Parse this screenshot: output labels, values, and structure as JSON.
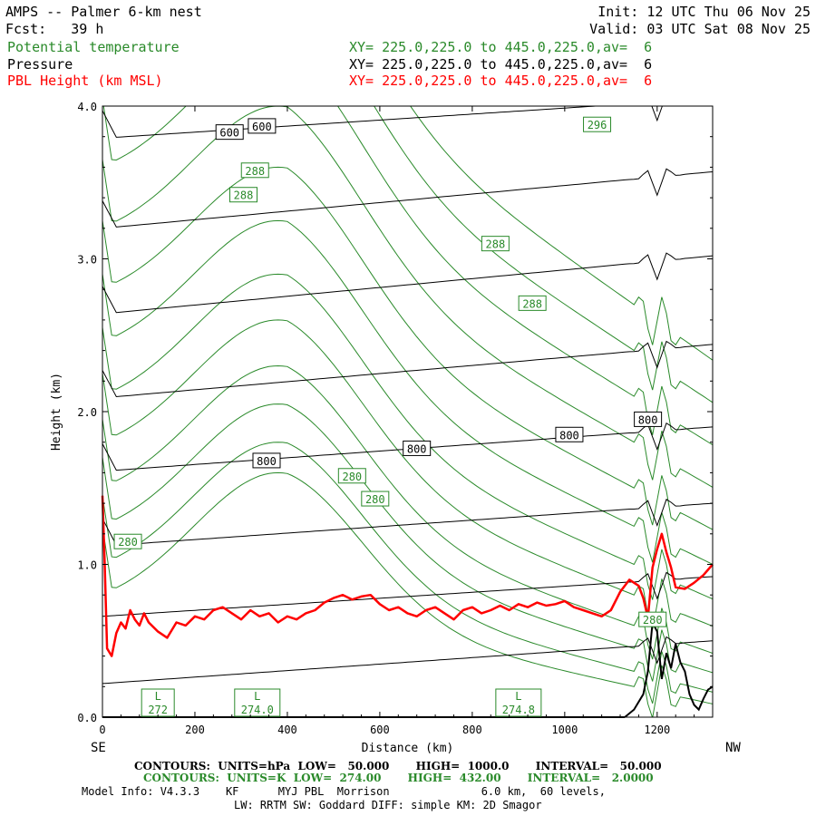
{
  "header": {
    "title": "AMPS -- Palmer 6-km nest",
    "fcst_label": "Fcst:",
    "fcst_value": "39 h",
    "init": "Init: 12 UTC Thu 06 Nov 25",
    "valid": "Valid: 03 UTC Sat 08 Nov 25",
    "fields": [
      {
        "name": "Potential temperature",
        "xy": "XY= 225.0,225.0 to 445.0,225.0,av=  6",
        "color": "#2a8a2a"
      },
      {
        "name": "Pressure",
        "xy": "XY= 225.0,225.0 to 445.0,225.0,av=  6",
        "color": "#000000"
      },
      {
        "name": "PBL Height (km MSL)",
        "xy": "XY= 225.0,225.0 to 445.0,225.0,av=  6",
        "color": "#ff0000"
      }
    ]
  },
  "chart_data": {
    "type": "line",
    "xlabel": "Distance (km)",
    "ylabel": "Height (km)",
    "xlim": [
      0,
      1320
    ],
    "ylim": [
      0,
      4
    ],
    "x_ticks": [
      "0",
      "200",
      "400",
      "600",
      "800",
      "1000",
      "1200"
    ],
    "y_ticks": [
      "0.0",
      "1.0",
      "2.0",
      "3.0",
      "4.0"
    ],
    "left_end_label": "SE",
    "right_end_label": "NW",
    "contour_labels": [
      {
        "text": "600",
        "x": 275,
        "y": 3.83,
        "series": "pressure"
      },
      {
        "text": "600",
        "x": 345,
        "y": 3.87,
        "series": "pressure"
      },
      {
        "text": "800",
        "x": 355,
        "y": 1.68,
        "series": "pressure"
      },
      {
        "text": "800",
        "x": 680,
        "y": 1.76,
        "series": "pressure"
      },
      {
        "text": "800",
        "x": 1010,
        "y": 1.85,
        "series": "pressure"
      },
      {
        "text": "800",
        "x": 1180,
        "y": 1.95,
        "series": "pressure"
      },
      {
        "text": "296",
        "x": 1070,
        "y": 3.88,
        "series": "theta"
      },
      {
        "text": "288",
        "x": 330,
        "y": 3.58,
        "series": "theta"
      },
      {
        "text": "288",
        "x": 305,
        "y": 3.42,
        "series": "theta"
      },
      {
        "text": "288",
        "x": 850,
        "y": 3.1,
        "series": "theta"
      },
      {
        "text": "288",
        "x": 930,
        "y": 2.71,
        "series": "theta"
      },
      {
        "text": "280",
        "x": 540,
        "y": 1.58,
        "series": "theta"
      },
      {
        "text": "280",
        "x": 590,
        "y": 1.43,
        "series": "theta"
      },
      {
        "text": "280",
        "x": 55,
        "y": 1.15,
        "series": "theta"
      },
      {
        "text": "280",
        "x": 1190,
        "y": 0.64,
        "series": "theta"
      }
    ],
    "low_labels": [
      {
        "text": "L",
        "value": "272",
        "x": 120
      },
      {
        "text": "L",
        "value": "274.0",
        "x": 335
      },
      {
        "text": "L",
        "value": "274.8",
        "x": 900
      }
    ],
    "series": [
      {
        "name": "Pressure",
        "color": "#000000",
        "kind": "pressure_contours",
        "levels_y0": [
          0.22,
          0.66,
          1.12,
          1.61,
          2.09,
          2.64,
          3.2,
          3.79
        ],
        "levels_y1": [
          0.5,
          0.92,
          1.4,
          1.9,
          2.44,
          3.02,
          3.57,
          4.05
        ]
      },
      {
        "name": "Potential temperature",
        "color": "#2a8a2a",
        "kind": "theta_contours",
        "levels_base": [
          0.15,
          0.35,
          0.6,
          0.85,
          1.15,
          1.45,
          1.8,
          2.15,
          2.55,
          2.95,
          3.35,
          3.75
        ]
      },
      {
        "name": "PBL Height (km MSL)",
        "color": "#ff0000",
        "kind": "pbl",
        "x": [
          0,
          5,
          10,
          20,
          30,
          40,
          50,
          60,
          70,
          80,
          90,
          100,
          120,
          140,
          160,
          180,
          200,
          220,
          240,
          260,
          280,
          300,
          320,
          340,
          360,
          380,
          400,
          420,
          440,
          460,
          480,
          500,
          520,
          540,
          560,
          580,
          600,
          620,
          640,
          660,
          680,
          700,
          720,
          740,
          760,
          780,
          800,
          820,
          840,
          860,
          880,
          900,
          920,
          940,
          960,
          980,
          1000,
          1020,
          1040,
          1060,
          1080,
          1100,
          1120,
          1140,
          1160,
          1170,
          1180,
          1190,
          1200,
          1210,
          1220,
          1230,
          1240,
          1260,
          1280,
          1300,
          1320
        ],
        "y": [
          1.45,
          1.0,
          0.45,
          0.4,
          0.55,
          0.62,
          0.58,
          0.7,
          0.64,
          0.6,
          0.68,
          0.62,
          0.56,
          0.52,
          0.62,
          0.6,
          0.66,
          0.64,
          0.7,
          0.72,
          0.68,
          0.64,
          0.7,
          0.66,
          0.68,
          0.62,
          0.66,
          0.64,
          0.68,
          0.7,
          0.75,
          0.78,
          0.8,
          0.77,
          0.79,
          0.8,
          0.74,
          0.7,
          0.72,
          0.68,
          0.66,
          0.7,
          0.72,
          0.68,
          0.64,
          0.7,
          0.72,
          0.68,
          0.7,
          0.73,
          0.7,
          0.74,
          0.72,
          0.75,
          0.73,
          0.74,
          0.76,
          0.72,
          0.7,
          0.68,
          0.66,
          0.7,
          0.82,
          0.9,
          0.86,
          0.78,
          0.65,
          0.98,
          1.1,
          1.2,
          1.08,
          0.98,
          0.85,
          0.84,
          0.88,
          0.93,
          1.0
        ]
      },
      {
        "name": "Terrain",
        "color": "#000000",
        "kind": "terrain",
        "x": [
          1130,
          1150,
          1170,
          1180,
          1190,
          1200,
          1210,
          1220,
          1230,
          1240,
          1250,
          1260,
          1270,
          1280,
          1290,
          1300,
          1310,
          1320
        ],
        "y": [
          0.0,
          0.05,
          0.15,
          0.3,
          0.62,
          0.56,
          0.25,
          0.42,
          0.32,
          0.48,
          0.36,
          0.3,
          0.15,
          0.08,
          0.05,
          0.12,
          0.18,
          0.2
        ]
      }
    ]
  },
  "footer": {
    "line1": "CONTOURS:  UNITS=hPa  LOW=   50.000       HIGH=  1000.0       INTERVAL=   50.000",
    "line2": "CONTOURS:  UNITS=K  LOW=  274.00       HIGH=  432.00       INTERVAL=   2.0000",
    "line3": "Model Info: V4.3.3    KF      MYJ PBL  Morrison              6.0 km,  60 levels,",
    "line4": "LW: RRTM SW: Goddard DIFF: simple KM: 2D Smagor",
    "line1_color": "#000000",
    "line2_color": "#2a8a2a"
  }
}
